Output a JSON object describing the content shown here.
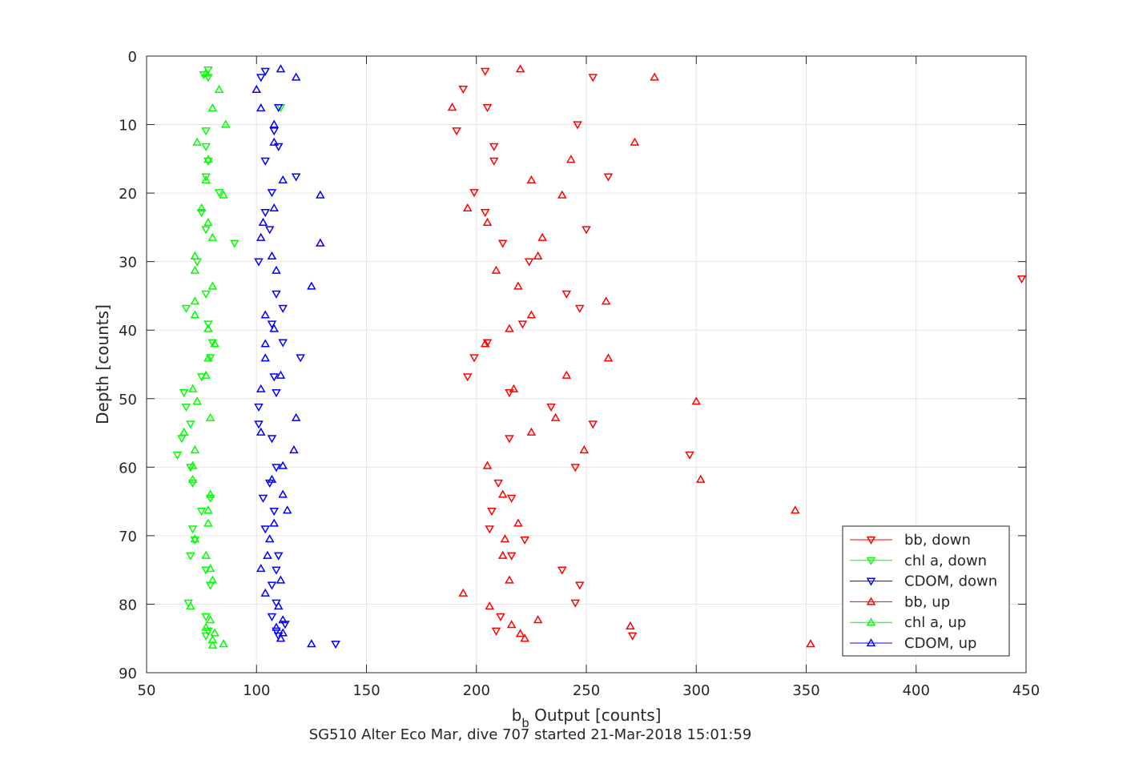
{
  "chart_data": {
    "type": "scatter",
    "title": "",
    "xlabel_main": "b",
    "xlabel_sub": "b",
    "xlabel_rest": " Output [counts]",
    "ylabel": "Depth [counts]",
    "caption": "SG510 Alter Eco Mar, dive 707 started 21-Mar-2018 15:01:59",
    "xlim": [
      50,
      450
    ],
    "ylim": [
      0,
      90
    ],
    "y_reversed": true,
    "grid": true,
    "legend_position": "bottom-right",
    "x_ticks": [
      "50",
      "100",
      "150",
      "200",
      "250",
      "300",
      "350",
      "400",
      "450"
    ],
    "y_ticks": [
      "0",
      "10",
      "20",
      "30",
      "40",
      "50",
      "60",
      "70",
      "80",
      "90"
    ],
    "series": [
      {
        "name": "bb, down",
        "color": "#ff0000",
        "marker": "triangle-down",
        "points": [
          [
            204,
            2.2
          ],
          [
            253,
            3.1
          ],
          [
            194,
            4.8
          ],
          [
            205,
            7.5
          ],
          [
            246,
            10
          ],
          [
            191,
            10.9
          ],
          [
            208,
            13.2
          ],
          [
            208,
            15.3
          ],
          [
            260,
            17.6
          ],
          [
            199,
            19.9
          ],
          [
            204,
            22.8
          ],
          [
            250,
            25.3
          ],
          [
            212,
            27.3
          ],
          [
            224,
            30
          ],
          [
            241,
            34.7
          ],
          [
            247,
            36.8
          ],
          [
            221,
            39.1
          ],
          [
            205,
            41.8
          ],
          [
            199,
            44
          ],
          [
            196,
            46.8
          ],
          [
            215,
            49.1
          ],
          [
            234,
            51.2
          ],
          [
            253,
            53.7
          ],
          [
            215,
            55.8
          ],
          [
            297,
            58.2
          ],
          [
            245,
            60
          ],
          [
            448,
            32.5
          ],
          [
            210,
            62.3
          ],
          [
            216,
            64.5
          ],
          [
            207,
            66.4
          ],
          [
            206,
            69
          ],
          [
            222,
            70.6
          ],
          [
            216,
            72.9
          ],
          [
            239,
            75
          ],
          [
            247,
            77.2
          ],
          [
            245,
            79.8
          ],
          [
            211,
            81.8
          ],
          [
            209,
            83.9
          ],
          [
            271,
            84.6
          ]
        ]
      },
      {
        "name": "chl a, down",
        "color": "#00ff00",
        "marker": "triangle-down",
        "points": [
          [
            78,
            2
          ],
          [
            78,
            3.1
          ],
          [
            76,
            2.7
          ],
          [
            111,
            7.5
          ],
          [
            77,
            10.9
          ],
          [
            77,
            13.2
          ],
          [
            78,
            15.3
          ],
          [
            77,
            17.6
          ],
          [
            83,
            19.9
          ],
          [
            75,
            22.8
          ],
          [
            77,
            25.3
          ],
          [
            90,
            27.3
          ],
          [
            73,
            30
          ],
          [
            77,
            34.7
          ],
          [
            68,
            36.8
          ],
          [
            78,
            39.1
          ],
          [
            80,
            41.8
          ],
          [
            79,
            44
          ],
          [
            75,
            46.8
          ],
          [
            67,
            49.1
          ],
          [
            68,
            51.2
          ],
          [
            70,
            53.7
          ],
          [
            66,
            55.8
          ],
          [
            64,
            58.2
          ],
          [
            70,
            60
          ],
          [
            71,
            62.3
          ],
          [
            79,
            64.5
          ],
          [
            75,
            66.4
          ],
          [
            71,
            69
          ],
          [
            72,
            70.6
          ],
          [
            70,
            72.9
          ],
          [
            77,
            75
          ],
          [
            79,
            77.2
          ],
          [
            69,
            79.8
          ],
          [
            77,
            81.8
          ],
          [
            78,
            83.9
          ],
          [
            77,
            84.6
          ]
        ]
      },
      {
        "name": "CDOM, down",
        "color": "#0000ff",
        "marker": "triangle-down",
        "points": [
          [
            104,
            2.2
          ],
          [
            102,
            3.1
          ],
          [
            110,
            7.5
          ],
          [
            108,
            10.9
          ],
          [
            110,
            13.2
          ],
          [
            104,
            15.3
          ],
          [
            118,
            17.6
          ],
          [
            107,
            19.9
          ],
          [
            104,
            22.8
          ],
          [
            106,
            25.3
          ],
          [
            101,
            30
          ],
          [
            109,
            34.7
          ],
          [
            112,
            36.8
          ],
          [
            107,
            39.1
          ],
          [
            112,
            41.8
          ],
          [
            120,
            44
          ],
          [
            108,
            46.8
          ],
          [
            109,
            49.1
          ],
          [
            101,
            51.2
          ],
          [
            101,
            53.7
          ],
          [
            107,
            55.8
          ],
          [
            109,
            60
          ],
          [
            106,
            62.3
          ],
          [
            103,
            64.5
          ],
          [
            108,
            66.4
          ],
          [
            104,
            69
          ],
          [
            110,
            72.9
          ],
          [
            109,
            75
          ],
          [
            107,
            77.2
          ],
          [
            109,
            79.8
          ],
          [
            107,
            81.8
          ],
          [
            113,
            82.9
          ],
          [
            109,
            83.9
          ],
          [
            110,
            84.6
          ],
          [
            136,
            85.8
          ]
        ]
      },
      {
        "name": "bb, up",
        "color": "#ff0000",
        "marker": "triangle-up",
        "points": [
          [
            220,
            1.9
          ],
          [
            281,
            3.1
          ],
          [
            189,
            7.5
          ],
          [
            272,
            12.6
          ],
          [
            243,
            15.1
          ],
          [
            225,
            18.1
          ],
          [
            239,
            20.3
          ],
          [
            196,
            22.2
          ],
          [
            205,
            24.3
          ],
          [
            230,
            26.5
          ],
          [
            228,
            29.2
          ],
          [
            209,
            31.3
          ],
          [
            219,
            33.6
          ],
          [
            259,
            35.8
          ],
          [
            225,
            37.8
          ],
          [
            215,
            39.8
          ],
          [
            204,
            42
          ],
          [
            260,
            44.1
          ],
          [
            241,
            46.6
          ],
          [
            217,
            48.6
          ],
          [
            300,
            50.4
          ],
          [
            236,
            52.8
          ],
          [
            225,
            54.9
          ],
          [
            249,
            57.5
          ],
          [
            205,
            59.8
          ],
          [
            302,
            61.8
          ],
          [
            212,
            64
          ],
          [
            345,
            66.3
          ],
          [
            219,
            68.2
          ],
          [
            213,
            70.5
          ],
          [
            212,
            72.9
          ],
          [
            215,
            76.5
          ],
          [
            194,
            78.4
          ],
          [
            206,
            80.3
          ],
          [
            228,
            82.3
          ],
          [
            216,
            83
          ],
          [
            220,
            84.3
          ],
          [
            270,
            83.2
          ],
          [
            222,
            85
          ],
          [
            352,
            85.8
          ]
        ]
      },
      {
        "name": "chl a, up",
        "color": "#00ff00",
        "marker": "triangle-up",
        "points": [
          [
            77,
            2.5
          ],
          [
            83,
            4.9
          ],
          [
            80,
            7.6
          ],
          [
            86,
            10
          ],
          [
            73,
            12.6
          ],
          [
            78,
            15.1
          ],
          [
            77,
            18.1
          ],
          [
            85,
            20.3
          ],
          [
            75,
            22.2
          ],
          [
            78,
            24.3
          ],
          [
            80,
            26.5
          ],
          [
            72,
            29.2
          ],
          [
            72,
            31.3
          ],
          [
            80,
            33.6
          ],
          [
            72,
            35.8
          ],
          [
            72,
            37.8
          ],
          [
            78,
            39.8
          ],
          [
            81,
            42
          ],
          [
            78,
            44.1
          ],
          [
            77,
            46.6
          ],
          [
            71,
            48.6
          ],
          [
            73,
            50.4
          ],
          [
            79,
            52.8
          ],
          [
            67,
            54.9
          ],
          [
            72,
            57.5
          ],
          [
            71,
            59.8
          ],
          [
            71,
            61.8
          ],
          [
            79,
            64
          ],
          [
            78,
            66.3
          ],
          [
            78,
            68.2
          ],
          [
            72,
            70.5
          ],
          [
            77,
            72.9
          ],
          [
            79,
            74.8
          ],
          [
            80,
            76.5
          ],
          [
            70,
            80.3
          ],
          [
            79,
            82.3
          ],
          [
            77,
            83.4
          ],
          [
            81,
            84.2
          ],
          [
            80,
            85.2
          ],
          [
            85,
            85.8
          ],
          [
            80,
            86
          ]
        ]
      },
      {
        "name": "CDOM, up",
        "color": "#0000ff",
        "marker": "triangle-up",
        "points": [
          [
            111,
            1.9
          ],
          [
            118,
            3.1
          ],
          [
            100,
            4.9
          ],
          [
            102,
            7.6
          ],
          [
            108,
            10
          ],
          [
            108,
            12.6
          ],
          [
            112,
            18.1
          ],
          [
            129,
            20.3
          ],
          [
            108,
            22.2
          ],
          [
            103,
            24.3
          ],
          [
            102,
            26.5
          ],
          [
            129,
            27.3
          ],
          [
            107,
            29.2
          ],
          [
            109,
            31.3
          ],
          [
            125,
            33.6
          ],
          [
            104,
            37.8
          ],
          [
            108,
            39.8
          ],
          [
            104,
            42
          ],
          [
            104,
            44.1
          ],
          [
            111,
            46.6
          ],
          [
            102,
            48.6
          ],
          [
            118,
            52.8
          ],
          [
            102,
            54.9
          ],
          [
            117,
            57.5
          ],
          [
            112,
            59.8
          ],
          [
            107,
            61.8
          ],
          [
            112,
            64
          ],
          [
            114,
            66.3
          ],
          [
            108,
            68.2
          ],
          [
            106,
            70.5
          ],
          [
            105,
            72.9
          ],
          [
            102,
            74.8
          ],
          [
            111,
            76.5
          ],
          [
            104,
            78.4
          ],
          [
            110,
            80.3
          ],
          [
            112,
            82.3
          ],
          [
            109,
            83.4
          ],
          [
            112,
            84.2
          ],
          [
            111,
            85
          ],
          [
            125,
            85.8
          ]
        ]
      }
    ]
  }
}
